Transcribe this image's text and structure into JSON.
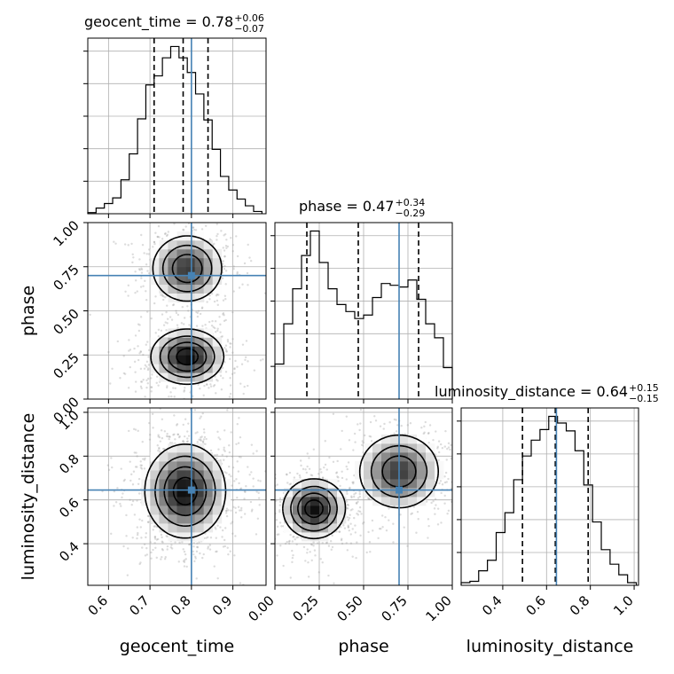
{
  "chart_data": {
    "type": "corner",
    "parameters": [
      "geocent_time",
      "phase",
      "luminosity_distance"
    ],
    "titles": [
      {
        "param": "geocent_time",
        "text": "geocent_time = 0.78",
        "plus": "+0.06",
        "minus": "−0.07"
      },
      {
        "param": "phase",
        "text": "phase = 0.47",
        "plus": "+0.34",
        "minus": "−0.29"
      },
      {
        "param": "luminosity_distance",
        "text": "luminosity_distance = 0.64",
        "plus": "+0.15",
        "minus": "−0.15"
      }
    ],
    "axes": {
      "geocent_time": {
        "range": [
          0.55,
          0.98
        ],
        "ticks": [
          0.6,
          0.7,
          0.8,
          0.9
        ],
        "tick_labels": [
          "0.6",
          "0.7",
          "0.8",
          "0.9"
        ]
      },
      "phase": {
        "range": [
          0.0,
          1.0
        ],
        "ticks": [
          0.0,
          0.25,
          0.5,
          0.75,
          1.0
        ],
        "tick_labels": [
          "0.00",
          "0.25",
          "0.50",
          "0.75",
          "1.00"
        ]
      },
      "luminosity_distance": {
        "range": [
          0.21,
          1.02
        ],
        "ticks": [
          0.4,
          0.6,
          0.8,
          1.0
        ],
        "tick_labels": [
          "0.4",
          "0.6",
          "0.8",
          "1.0"
        ]
      }
    },
    "truths": {
      "geocent_time": 0.8,
      "phase": 0.7,
      "luminosity_distance": 0.645
    },
    "quantiles": {
      "geocent_time": [
        0.71,
        0.78,
        0.84
      ],
      "phase": [
        0.18,
        0.47,
        0.81
      ],
      "luminosity_distance": [
        0.49,
        0.64,
        0.79
      ]
    },
    "histograms": {
      "geocent_time": {
        "edges": [
          0.55,
          0.57,
          0.59,
          0.61,
          0.63,
          0.65,
          0.67,
          0.69,
          0.71,
          0.73,
          0.75,
          0.77,
          0.79,
          0.81,
          0.83,
          0.85,
          0.87,
          0.89,
          0.91,
          0.93,
          0.95,
          0.97
        ],
        "counts": [
          1,
          5,
          9,
          14,
          30,
          53,
          84,
          114,
          122,
          138,
          148,
          138,
          125,
          106,
          83,
          57,
          33,
          21,
          13,
          7,
          2
        ]
      },
      "phase": {
        "edges": [
          0.0,
          0.05,
          0.1,
          0.15,
          0.2,
          0.25,
          0.3,
          0.35,
          0.4,
          0.45,
          0.5,
          0.55,
          0.6,
          0.65,
          0.7,
          0.75,
          0.8,
          0.85,
          0.9,
          0.95,
          1.0
        ],
        "counts": [
          20,
          43,
          63,
          82,
          96,
          78,
          63,
          54,
          50,
          46,
          48,
          58,
          66,
          65,
          64,
          68,
          57,
          43,
          35,
          18
        ]
      },
      "luminosity_distance": {
        "edges": [
          0.21,
          0.25,
          0.29,
          0.33,
          0.37,
          0.41,
          0.45,
          0.49,
          0.53,
          0.57,
          0.61,
          0.65,
          0.69,
          0.73,
          0.77,
          0.81,
          0.85,
          0.89,
          0.93,
          0.97,
          1.01
        ],
        "counts": [
          2,
          3,
          11,
          19,
          40,
          55,
          80,
          98,
          110,
          118,
          128,
          123,
          117,
          102,
          76,
          48,
          27,
          16,
          8,
          2
        ]
      }
    },
    "pairs": [
      {
        "x": "geocent_time",
        "y": "phase",
        "modes": [
          {
            "x": 0.79,
            "y": 0.24,
            "sx": 0.045,
            "sy": 0.08,
            "w": 0.55
          },
          {
            "x": 0.79,
            "y": 0.74,
            "sx": 0.045,
            "sy": 0.1,
            "w": 0.45
          }
        ]
      },
      {
        "x": "geocent_time",
        "y": "luminosity_distance",
        "modes": [
          {
            "x": 0.785,
            "y": 0.64,
            "sx": 0.05,
            "sy": 0.11,
            "w": 1.0
          }
        ]
      },
      {
        "x": "phase",
        "y": "luminosity_distance",
        "modes": [
          {
            "x": 0.22,
            "y": 0.56,
            "sx": 0.09,
            "sy": 0.07,
            "w": 0.55
          },
          {
            "x": 0.7,
            "y": 0.73,
            "sx": 0.12,
            "sy": 0.09,
            "w": 0.45
          }
        ]
      }
    ],
    "grid": true
  }
}
